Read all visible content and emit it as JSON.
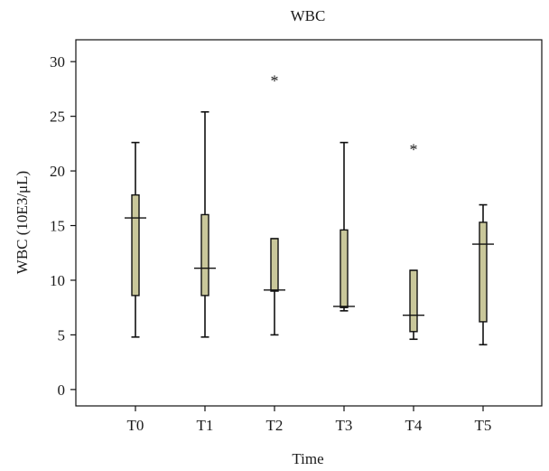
{
  "chart_data": {
    "type": "box",
    "title": "WBC",
    "xlabel": "Time",
    "ylabel": "WBC (10E3/μL)",
    "ylim": [
      -1.5,
      32
    ],
    "yticks": [
      0,
      5,
      10,
      15,
      20,
      25,
      30
    ],
    "categories": [
      "T0",
      "T1",
      "T2",
      "T3",
      "T4",
      "T5"
    ],
    "boxes": [
      {
        "category": "T0",
        "min": 4.8,
        "q1": 8.6,
        "median": 15.7,
        "q3": 17.8,
        "max": 22.6,
        "outliers": []
      },
      {
        "category": "T1",
        "min": 4.8,
        "q1": 8.6,
        "median": 11.1,
        "q3": 16.0,
        "max": 25.4,
        "outliers": []
      },
      {
        "category": "T2",
        "min": 5.0,
        "q1": 9.0,
        "median": 9.1,
        "q3": 13.8,
        "max": 13.8,
        "outliers": [
          28.5
        ]
      },
      {
        "category": "T3",
        "min": 7.2,
        "q1": 7.5,
        "median": 7.6,
        "q3": 14.6,
        "max": 22.6,
        "outliers": []
      },
      {
        "category": "T4",
        "min": 4.6,
        "q1": 5.3,
        "median": 6.8,
        "q3": 10.9,
        "max": 10.9,
        "outliers": [
          22.2
        ]
      },
      {
        "category": "T5",
        "min": 4.1,
        "q1": 6.2,
        "median": 13.3,
        "q3": 15.3,
        "max": 16.9,
        "outliers": []
      }
    ],
    "outlier_marker": "*",
    "box_color": "#c9c79a",
    "grid": false,
    "legend": "none"
  }
}
